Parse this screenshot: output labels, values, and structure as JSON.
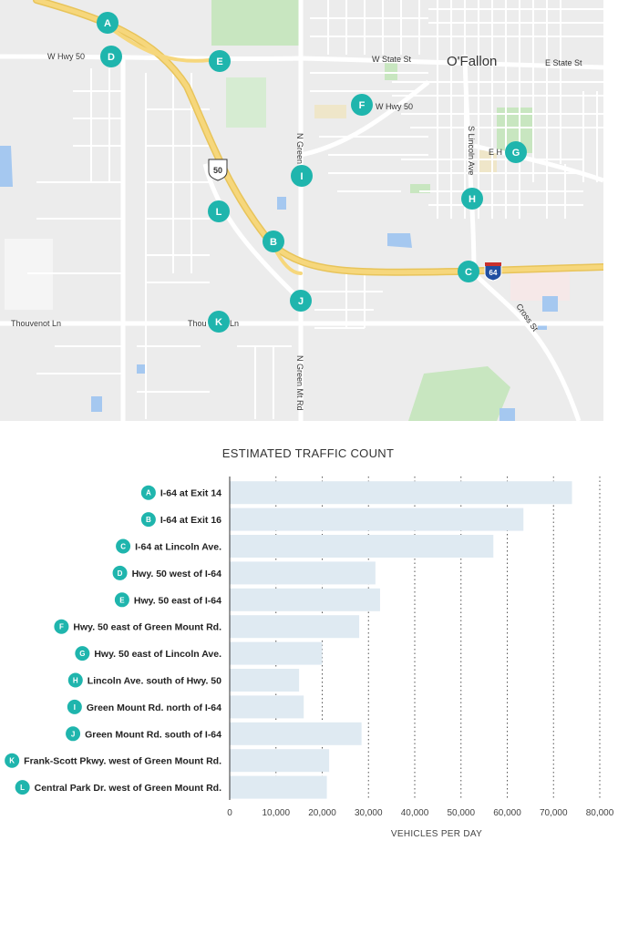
{
  "map": {
    "city_label": "O'Fallon",
    "road_labels": {
      "w_hwy_50_west": "W Hwy 50",
      "w_state_st": "W State St",
      "e_state_st": "E State St",
      "w_hwy_50_mid": "W Hwy 50",
      "n_green_north": "N Green",
      "s_lincoln_ave": "S Lincoln Ave",
      "e_hwy_partial": "E H",
      "thouvenot_ln_west": "Thouvenot Ln",
      "thouvenot_ln_mid": "Thou",
      "thouvenot_ln_end": "Ln",
      "cross_st": "Cross St",
      "n_green_mt_rd": "N Green Mt Rd"
    },
    "shields": {
      "us_50": "50",
      "i_64": "64"
    },
    "markers": [
      "A",
      "B",
      "C",
      "D",
      "E",
      "F",
      "G",
      "H",
      "I",
      "J",
      "K",
      "L"
    ],
    "colors": {
      "marker": "#1fb5ad",
      "highway": "#f6d77c",
      "park": "#c8e6c0",
      "water": "#a5c8f0"
    }
  },
  "chart_data": {
    "type": "bar",
    "orientation": "horizontal",
    "title": "ESTIMATED TRAFFIC COUNT",
    "xlabel": "VEHICLES PER DAY",
    "ylabel": "",
    "xlim": [
      0,
      80000
    ],
    "xticks": [
      "0",
      "10,000",
      "20,000",
      "30,000",
      "40,000",
      "50,000",
      "60,000",
      "70,000",
      "80,000"
    ],
    "grid": "vertical dotted",
    "bar_color": "#dfeaf2",
    "badge_color": "#1fb5ad",
    "categories": [
      {
        "badge": "A",
        "label": "I-64 at Exit 14"
      },
      {
        "badge": "B",
        "label": "I-64 at Exit 16"
      },
      {
        "badge": "C",
        "label": "I-64 at Lincoln Ave."
      },
      {
        "badge": "D",
        "label": "Hwy. 50 west of I-64"
      },
      {
        "badge": "E",
        "label": "Hwy. 50 east of I-64"
      },
      {
        "badge": "F",
        "label": "Hwy. 50 east of Green Mount Rd."
      },
      {
        "badge": "G",
        "label": "Hwy. 50 east of Lincoln Ave."
      },
      {
        "badge": "H",
        "label": "Lincoln Ave. south of Hwy. 50"
      },
      {
        "badge": "I",
        "label": "Green Mount Rd. north of I-64"
      },
      {
        "badge": "J",
        "label": "Green Mount Rd. south of I-64"
      },
      {
        "badge": "K",
        "label": "Frank-Scott Pkwy. west of Green Mount Rd."
      },
      {
        "badge": "L",
        "label": "Central Park Dr. west of Green Mount Rd."
      }
    ],
    "values": [
      74000,
      63500,
      57000,
      31500,
      32500,
      28000,
      20000,
      15000,
      16000,
      28500,
      21500,
      21000
    ]
  }
}
